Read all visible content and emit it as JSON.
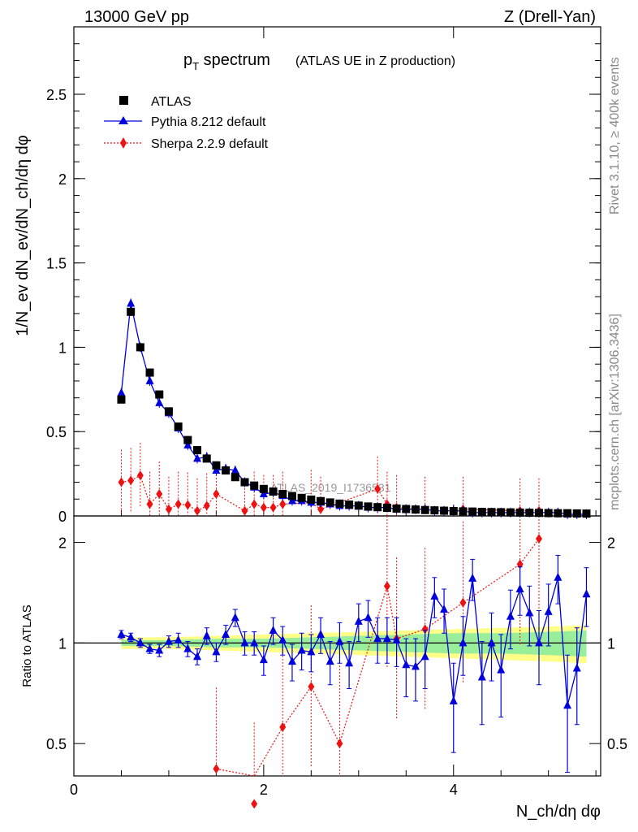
{
  "header": {
    "energy": "13000 GeV pp",
    "process": "Z (Drell-Yan)"
  },
  "side": {
    "rivet": "Rivet 3.1.10, ≥ 400k events",
    "mcplots": "mcplots.cern.ch [arXiv:1306.3436]"
  },
  "title": {
    "main": "p",
    "sub": "T",
    "suffix": " spectrum",
    "paren": "(ATLAS UE in Z production)"
  },
  "watermark": "ATLAS_2019_I1736531",
  "axes": {
    "ylabel_main": "1/N_ev dN_ev/dN_ch/dη dφ",
    "ylabel_ratio": "Ratio to ATLAS",
    "xlabel": "N_ch/dη dφ",
    "main_yticks": [
      0,
      0.5,
      1,
      1.5,
      2,
      2.5
    ],
    "ratio_yticks": [
      0.5,
      1,
      2
    ],
    "xticks": [
      0,
      2,
      4
    ]
  },
  "chart_data": {
    "type": "scatter",
    "x": [
      0.5,
      0.6,
      0.7,
      0.8,
      0.9,
      1.0,
      1.1,
      1.2,
      1.3,
      1.4,
      1.5,
      1.6,
      1.7,
      1.8,
      1.9,
      2.0,
      2.1,
      2.2,
      2.3,
      2.4,
      2.5,
      2.6,
      2.7,
      2.8,
      2.9,
      3.0,
      3.1,
      3.2,
      3.3,
      3.4,
      3.5,
      3.6,
      3.7,
      3.8,
      3.9,
      4.0,
      4.1,
      4.2,
      4.3,
      4.4,
      4.5,
      4.6,
      4.7,
      4.8,
      4.9,
      5.0,
      5.1,
      5.2,
      5.3,
      5.4
    ],
    "xlim": [
      0,
      5.55
    ],
    "main_ylim": [
      0,
      2.9
    ],
    "ratio_ylim": [
      0.4,
      2.4
    ],
    "legend": [
      "ATLAS",
      "Pythia 8.212 default",
      "Sherpa 2.2.9 default"
    ],
    "series": [
      {
        "name": "ATLAS",
        "color": "#000000",
        "marker": "square",
        "values": [
          0.69,
          1.21,
          1.0,
          0.85,
          0.72,
          0.62,
          0.53,
          0.45,
          0.39,
          0.34,
          0.3,
          0.27,
          0.23,
          0.2,
          0.18,
          0.16,
          0.145,
          0.13,
          0.118,
          0.107,
          0.097,
          0.088,
          0.08,
          0.073,
          0.067,
          0.061,
          0.056,
          0.052,
          0.048,
          0.044,
          0.041,
          0.038,
          0.035,
          0.033,
          0.031,
          0.029,
          0.027,
          0.026,
          0.024,
          0.023,
          0.022,
          0.021,
          0.02,
          0.019,
          0.018,
          0.017,
          0.016,
          0.016,
          0.015,
          0.014
        ]
      },
      {
        "name": "Pythia 8.212 default",
        "color": "#0000dd",
        "marker": "triangle",
        "values": [
          0.73,
          1.26,
          1.0,
          0.8,
          0.67,
          0.61,
          0.52,
          0.42,
          0.34,
          0.35,
          0.27,
          0.28,
          0.27,
          0.2,
          0.17,
          0.13,
          0.14,
          0.12,
          0.09,
          0.09,
          0.08,
          0.08,
          0.07,
          0.06,
          0.06,
          0.06,
          0.05,
          0.05,
          0.05,
          0.04,
          0.04,
          0.04,
          0.04,
          0.03,
          0.03,
          0.03,
          0.03,
          0.02,
          0.02,
          0.02,
          0.02,
          0.02,
          0.02,
          0.02,
          0.02,
          0.02,
          0.02,
          0.01,
          0.01,
          0.01
        ],
        "ratio": [
          1.06,
          1.04,
          1.0,
          0.96,
          0.95,
          1.01,
          1.02,
          0.96,
          0.91,
          1.05,
          0.94,
          1.06,
          1.19,
          1.0,
          1.0,
          0.89,
          1.09,
          1.02,
          0.88,
          0.95,
          0.94,
          1.06,
          0.88,
          1.01,
          0.87,
          1.16,
          1.19,
          1.03,
          1.03,
          1.02,
          0.86,
          0.85,
          0.91,
          1.38,
          1.26,
          0.67,
          1.0,
          1.56,
          0.79,
          1.0,
          0.83,
          1.2,
          1.45,
          1.23,
          1.0,
          1.24,
          1.57,
          0.65,
          0.84,
          1.4
        ],
        "ratio_err": [
          0.03,
          0.03,
          0.03,
          0.03,
          0.04,
          0.04,
          0.05,
          0.05,
          0.05,
          0.06,
          0.06,
          0.07,
          0.07,
          0.08,
          0.08,
          0.09,
          0.1,
          0.1,
          0.11,
          0.12,
          0.12,
          0.13,
          0.13,
          0.14,
          0.14,
          0.15,
          0.15,
          0.16,
          0.16,
          0.17,
          0.17,
          0.18,
          0.18,
          0.19,
          0.19,
          0.2,
          0.2,
          0.22,
          0.22,
          0.23,
          0.23,
          0.24,
          0.24,
          0.25,
          0.25,
          0.26,
          0.26,
          0.27,
          0.27,
          0.28
        ]
      },
      {
        "name": "Sherpa 2.2.9 default",
        "color": "#ee1111",
        "marker": "diamond",
        "style": "dotted",
        "x": [
          0.5,
          0.6,
          0.7,
          0.8,
          0.9,
          1.0,
          1.1,
          1.2,
          1.3,
          1.4,
          1.5,
          1.8,
          1.9,
          2.0,
          2.1,
          2.2,
          2.5,
          2.6,
          3.2,
          3.3,
          3.4,
          3.7,
          4.1,
          4.7,
          4.9
        ],
        "values": [
          0.2,
          0.21,
          0.24,
          0.07,
          0.13,
          0.04,
          0.07,
          0.065,
          0.03,
          0.06,
          0.13,
          0.03,
          0.07,
          0.05,
          0.05,
          0.07,
          0.08,
          0.04,
          0.16,
          0.07,
          0.05,
          0.04,
          0.04,
          0.03,
          0.03
        ],
        "ratio_x": [
          1.5,
          1.9,
          2.2,
          2.5,
          2.8,
          3.3,
          3.4,
          3.7,
          4.1,
          4.7,
          4.9
        ],
        "ratio": [
          0.42,
          0.33,
          0.56,
          0.74,
          0.5,
          1.48,
          1.03,
          1.1,
          1.32,
          1.72,
          2.05
        ]
      }
    ],
    "band": {
      "x": [
        0.5,
        1.0,
        1.5,
        2.0,
        2.5,
        3.0,
        3.5,
        4.0,
        4.5,
        5.0,
        5.4
      ],
      "inner": [
        0.02,
        0.02,
        0.03,
        0.03,
        0.04,
        0.05,
        0.06,
        0.07,
        0.07,
        0.08,
        0.09
      ],
      "outer": [
        0.04,
        0.04,
        0.05,
        0.06,
        0.07,
        0.08,
        0.09,
        0.1,
        0.11,
        0.12,
        0.13
      ]
    }
  }
}
